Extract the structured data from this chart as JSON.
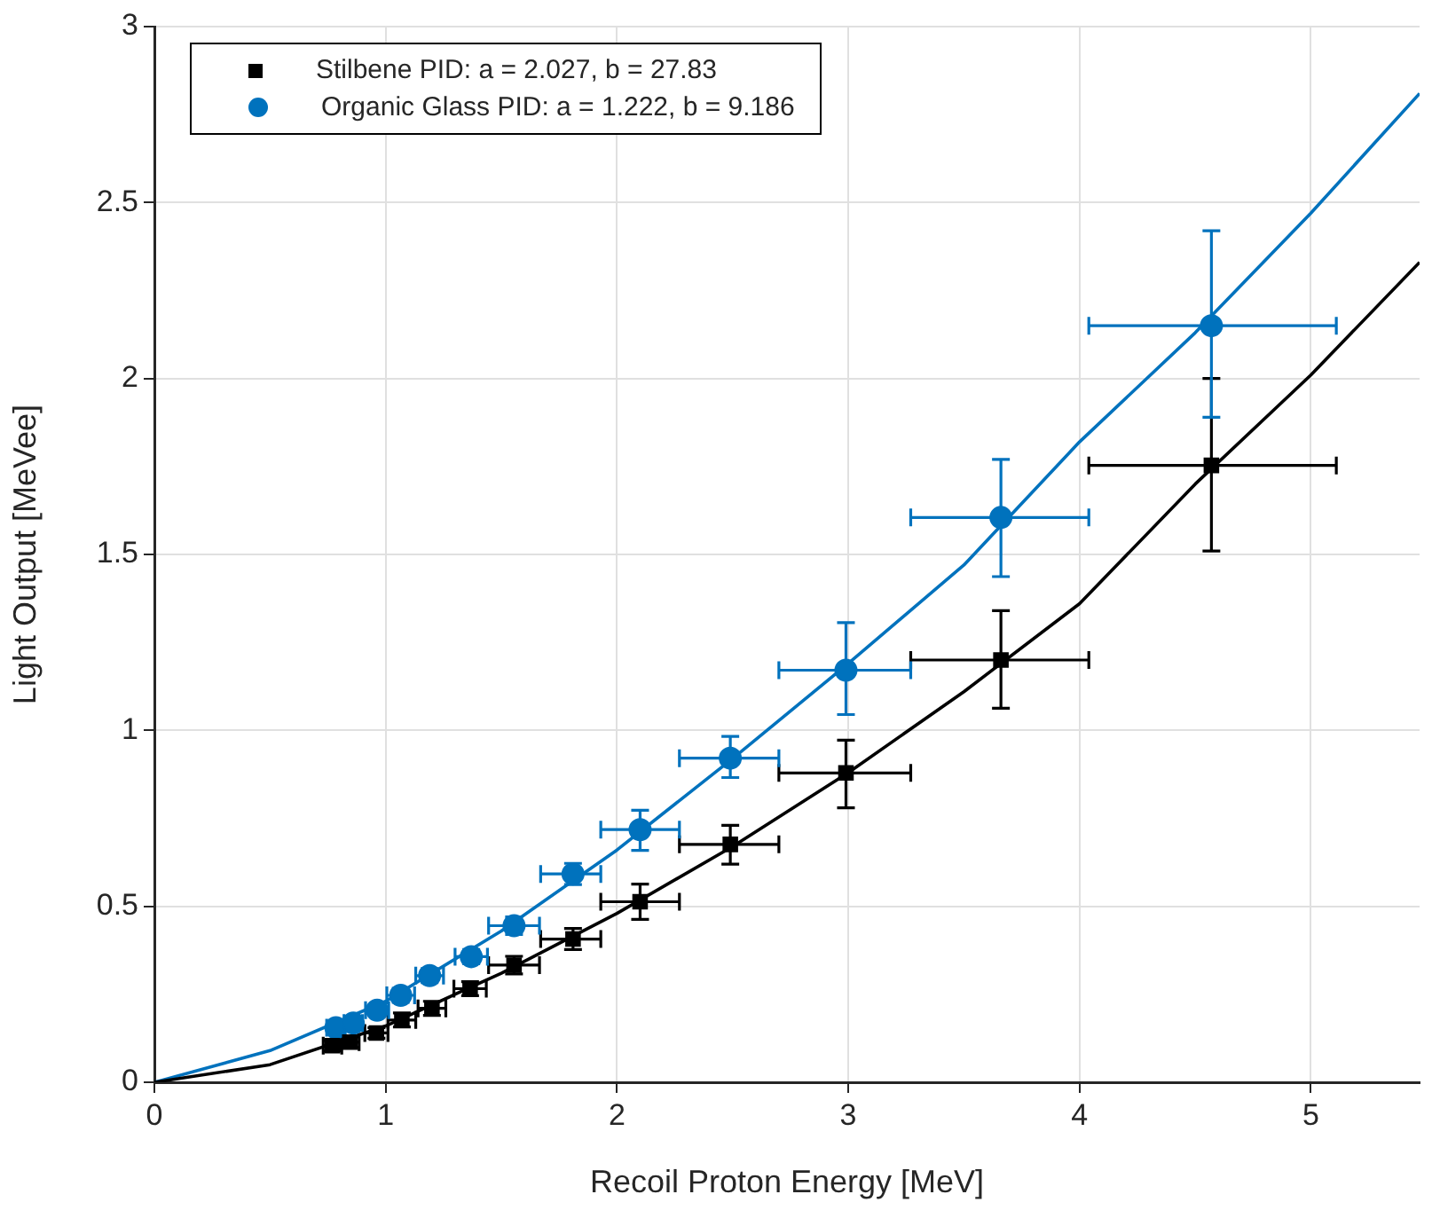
{
  "chart_data": {
    "type": "scatter",
    "xlabel": "Recoil Proton Energy [MeV]",
    "ylabel": "Light Output [MeVee]",
    "xlim": [
      0,
      5.47
    ],
    "xticks": [
      0,
      1,
      2,
      3,
      4,
      5
    ],
    "ylim": [
      0,
      3
    ],
    "yticks": [
      0,
      0.5,
      1,
      1.5,
      2,
      2.5,
      3
    ],
    "grid": true,
    "legend": "top left",
    "series": [
      {
        "name": "Stilbene PID: a = 2.027, b = 27.83",
        "type": "scatter",
        "marker": "square",
        "color": "#000000",
        "x": [
          0.77,
          0.845,
          0.96,
          1.07,
          1.2,
          1.365,
          1.555,
          1.81,
          2.1,
          2.49,
          2.99,
          3.66,
          4.57
        ],
        "values": [
          0.104,
          0.114,
          0.14,
          0.177,
          0.21,
          0.266,
          0.333,
          0.407,
          0.513,
          0.676,
          0.879,
          1.2,
          1.753
        ],
        "errors": [
          0.015,
          0.015,
          0.015,
          0.02,
          0.02,
          0.02,
          0.025,
          0.03,
          0.05,
          [
            0.62,
            0.73
          ],
          [
            0.78,
            0.972
          ],
          [
            1.063,
            1.34
          ],
          [
            1.51,
            2.0
          ]
        ],
        "xerrors": [
          0.04,
          0.04,
          0.05,
          0.06,
          0.06,
          0.07,
          0.11,
          [
            1.67,
            1.93
          ],
          [
            1.93,
            2.27
          ],
          [
            2.27,
            2.7
          ],
          [
            2.7,
            3.27
          ],
          [
            3.27,
            4.04
          ],
          [
            4.04,
            5.11
          ]
        ]
      },
      {
        "name": "Organic Glass PID: a = 1.222, b = 9.186",
        "type": "scatter",
        "marker": "circle",
        "color": "#0072bd",
        "x": [
          0.785,
          0.86,
          0.963,
          1.065,
          1.19,
          1.37,
          1.555,
          1.81,
          2.1,
          2.49,
          2.99,
          3.66,
          4.57
        ],
        "values": [
          0.155,
          0.168,
          0.205,
          0.247,
          0.303,
          0.357,
          0.445,
          0.592,
          0.718,
          0.921,
          1.171,
          1.605,
          2.15
        ],
        "errors": [
          0.015,
          0.015,
          0.015,
          0.02,
          0.02,
          0.02,
          0.025,
          0.03,
          [
            0.659,
            0.773
          ],
          [
            0.866,
            0.983
          ],
          [
            1.045,
            1.306
          ],
          [
            1.437,
            1.77
          ],
          [
            1.89,
            2.42
          ]
        ],
        "xerrors": [
          0.04,
          0.04,
          0.05,
          0.06,
          0.06,
          0.07,
          0.11,
          [
            1.67,
            1.93
          ],
          [
            1.93,
            2.27
          ],
          [
            2.27,
            2.7
          ],
          [
            2.7,
            3.27
          ],
          [
            3.27,
            4.04
          ],
          [
            4.04,
            5.11
          ]
        ]
      },
      {
        "type": "line",
        "color": "#000000",
        "line_style": "solid",
        "marker": "none",
        "x": [
          0,
          0.5,
          1,
          1.5,
          2,
          2.5,
          3,
          3.5,
          4,
          4.5,
          5,
          5.47
        ],
        "values": [
          0,
          0.05,
          0.16,
          0.31,
          0.48,
          0.67,
          0.88,
          1.11,
          1.36,
          1.7,
          2.01,
          2.33
        ]
      },
      {
        "type": "line",
        "color": "#0072bd",
        "line_style": "solid",
        "marker": "none",
        "x": [
          0,
          0.5,
          1,
          1.5,
          2,
          2.5,
          3,
          3.5,
          4,
          4.5,
          5,
          5.47
        ],
        "values": [
          0,
          0.09,
          0.23,
          0.43,
          0.66,
          0.92,
          1.19,
          1.47,
          1.82,
          2.13,
          2.47,
          2.81
        ]
      }
    ]
  }
}
